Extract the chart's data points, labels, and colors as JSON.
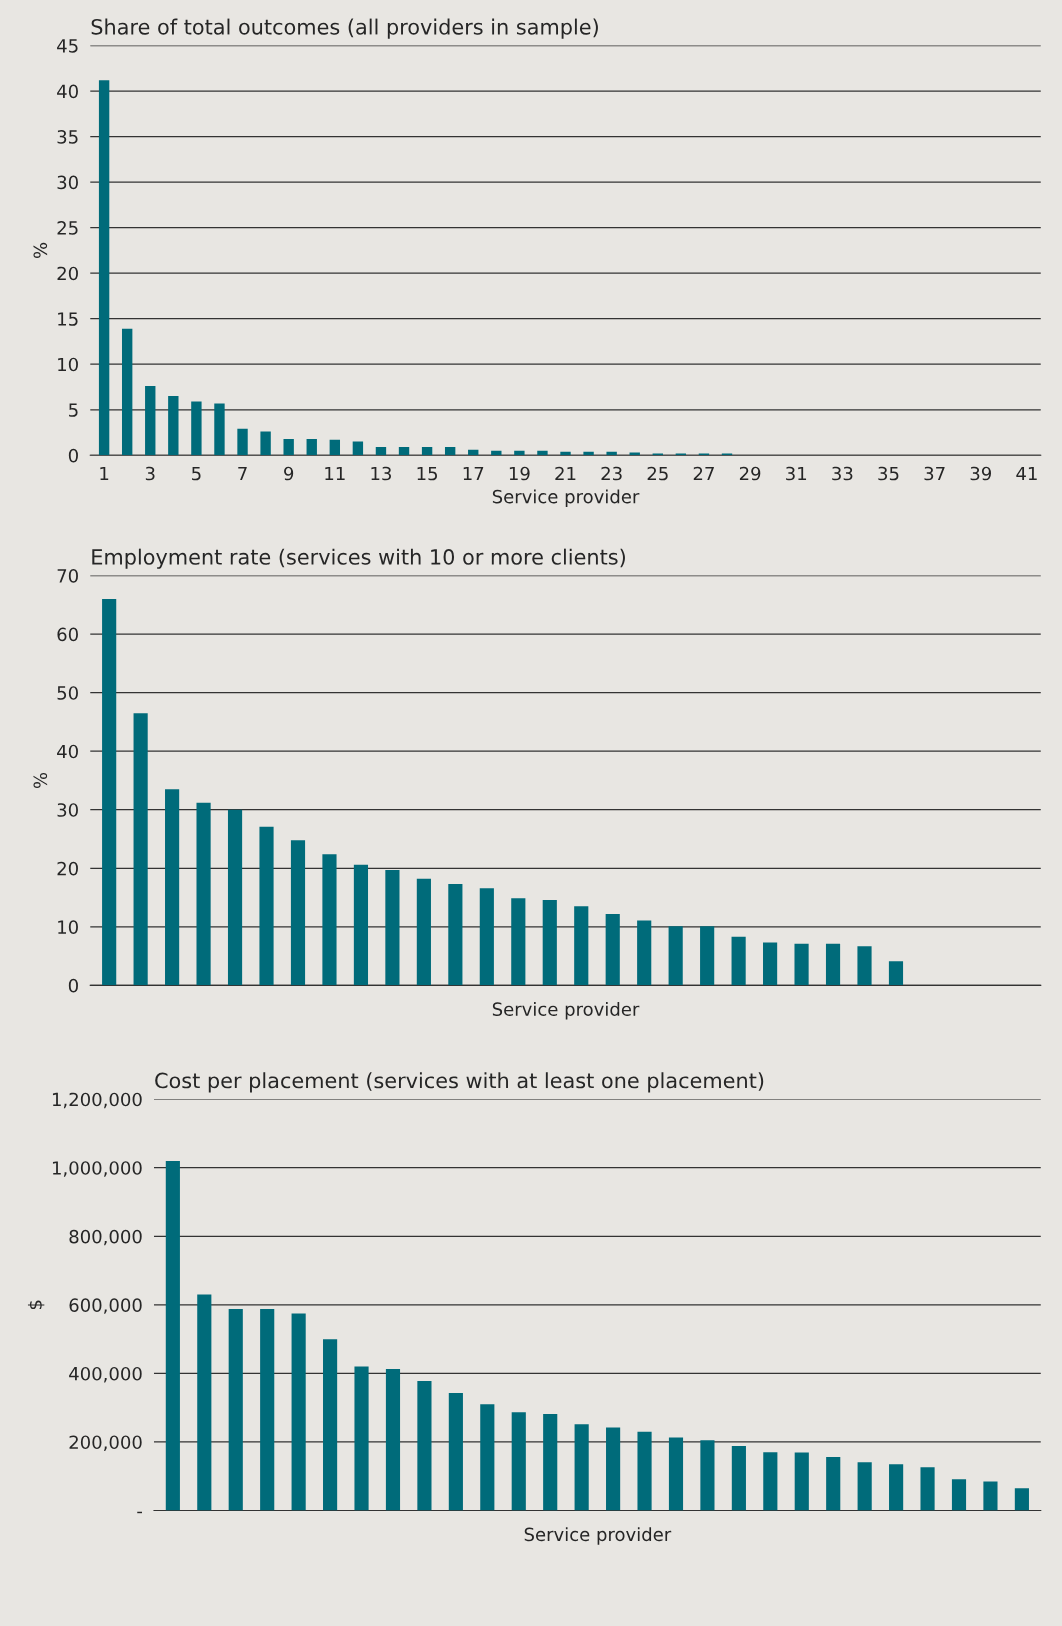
{
  "chart_data": [
    {
      "type": "bar",
      "title": "Share of total outcomes (all providers in sample)",
      "xlabel": "Service provider",
      "ylabel": "%",
      "categories": [
        "1",
        null,
        "3",
        null,
        "5",
        null,
        "7",
        null,
        "9",
        null,
        "11",
        null,
        "13",
        null,
        "15",
        null,
        "17",
        null,
        "19",
        null,
        "21",
        null,
        "23",
        null,
        "25",
        null,
        "27",
        null,
        "29",
        null,
        "31",
        null,
        "33",
        null,
        "35",
        null,
        "37",
        null,
        "39",
        null,
        "41"
      ],
      "series": [
        {
          "color": "#006b7a",
          "values": [
            41.2,
            13.9,
            7.6,
            6.5,
            5.9,
            5.7,
            2.9,
            2.6,
            1.8,
            1.8,
            1.7,
            1.5,
            0.9,
            0.9,
            0.9,
            0.9,
            0.6,
            0.5,
            0.5,
            0.5,
            0.4,
            0.4,
            0.4,
            0.3,
            0.2,
            0.2,
            0.2,
            0.2,
            null,
            null,
            null,
            null,
            null,
            null,
            null,
            null,
            null,
            null,
            null,
            null,
            null
          ]
        }
      ],
      "ylim": [
        0,
        45
      ],
      "yticks": [
        0,
        5,
        10,
        15,
        20,
        25,
        30,
        35,
        40,
        45
      ],
      "grid": "y",
      "legend": false
    },
    {
      "type": "bar",
      "title": "Employment rate (services with 10 or more clients)",
      "xlabel": "Service provider",
      "ylabel": "%",
      "categories": [
        null,
        null,
        null,
        null,
        null,
        null,
        null,
        null,
        null,
        null,
        null,
        null,
        null,
        null,
        null,
        null,
        null,
        null,
        null,
        null,
        null,
        null,
        null,
        null,
        null,
        null,
        null,
        null,
        null,
        null
      ],
      "series": [
        {
          "color": "#006b7a",
          "values": [
            66,
            46.5,
            33.5,
            31.2,
            30,
            27.1,
            24.8,
            22.4,
            20.6,
            19.7,
            18.2,
            17.3,
            16.6,
            14.9,
            14.6,
            13.5,
            12.2,
            11.1,
            10.1,
            10.1,
            8.3,
            7.3,
            7.1,
            7.1,
            6.7,
            4.1,
            null,
            null,
            null,
            null
          ]
        }
      ],
      "ylim": [
        0,
        70
      ],
      "yticks": [
        0,
        10,
        20,
        30,
        40,
        50,
        60,
        70
      ],
      "grid": "y",
      "legend": false
    },
    {
      "type": "bar",
      "title": "Cost per placement (services with at least one placement)",
      "xlabel": "Service provider",
      "ylabel": "$",
      "categories": [
        null,
        null,
        null,
        null,
        null,
        null,
        null,
        null,
        null,
        null,
        null,
        null,
        null,
        null,
        null,
        null,
        null,
        null,
        null,
        null,
        null,
        null,
        null,
        null,
        null,
        null,
        null,
        null
      ],
      "series": [
        {
          "color": "#006b7a",
          "values": [
            1020000,
            630000,
            588000,
            588000,
            575000,
            500000,
            420000,
            413000,
            378000,
            343000,
            310000,
            287000,
            282000,
            252000,
            242000,
            230000,
            213000,
            205000,
            188000,
            170000,
            169000,
            156000,
            141000,
            135000,
            126000,
            91000,
            85000,
            65000
          ]
        }
      ],
      "ylim": [
        0,
        1200000
      ],
      "yticks": [
        {
          "value": 0,
          "label": "-"
        },
        {
          "value": 200000,
          "label": "200,000"
        },
        {
          "value": 400000,
          "label": "400,000"
        },
        {
          "value": 600000,
          "label": "600,000"
        },
        {
          "value": 800000,
          "label": "800,000"
        },
        {
          "value": 1000000,
          "label": "1,000,000"
        },
        {
          "value": 1200000,
          "label": "1,200,000"
        }
      ],
      "grid": "y",
      "legend": false
    }
  ]
}
